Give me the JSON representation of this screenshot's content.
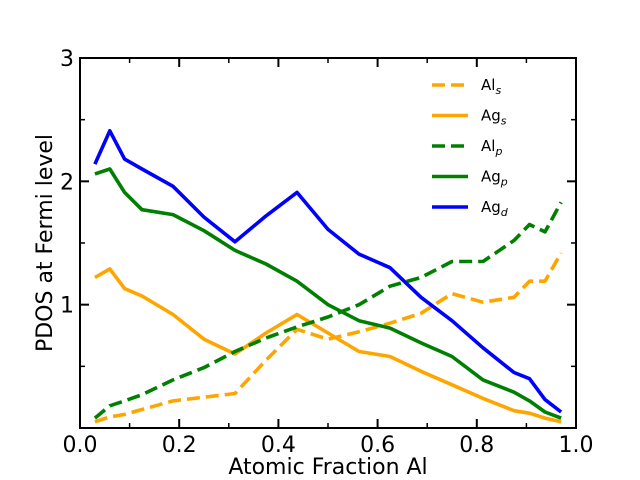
{
  "chart_data": {
    "type": "line",
    "xlabel": "Atomic Fraction Al",
    "ylabel": "PDOS at Fermi level",
    "xlim": [
      0.0,
      1.0
    ],
    "ylim": [
      0.0,
      3.0
    ],
    "x_ticks": [
      0.0,
      0.2,
      0.4,
      0.6,
      0.8,
      1.0
    ],
    "x_tick_labels": [
      "0.0",
      "0.2",
      "0.4",
      "0.6",
      "0.8",
      "1.0"
    ],
    "y_ticks": [
      1,
      2,
      3
    ],
    "y_tick_labels": [
      "1",
      "2",
      "3"
    ],
    "grid": false,
    "legend_position": "top-right",
    "series": [
      {
        "name": "Al",
        "subscript": "s",
        "color": "#FFA500",
        "dash": "dashed",
        "x": [
          0.03,
          0.06,
          0.09,
          0.125,
          0.1875,
          0.25,
          0.3125,
          0.375,
          0.4375,
          0.5,
          0.5625,
          0.625,
          0.6875,
          0.75,
          0.8125,
          0.875,
          0.90625,
          0.9375,
          0.97
        ],
        "y": [
          0.05,
          0.09,
          0.11,
          0.15,
          0.22,
          0.25,
          0.28,
          0.55,
          0.8,
          0.72,
          0.78,
          0.85,
          0.93,
          1.09,
          1.02,
          1.06,
          1.19,
          1.19,
          1.42
        ]
      },
      {
        "name": "Ag",
        "subscript": "s",
        "color": "#FFA500",
        "dash": "solid",
        "x": [
          0.03,
          0.06,
          0.09,
          0.125,
          0.1875,
          0.25,
          0.3125,
          0.375,
          0.4375,
          0.5,
          0.5625,
          0.625,
          0.6875,
          0.75,
          0.8125,
          0.875,
          0.90625,
          0.9375,
          0.97
        ],
        "y": [
          1.22,
          1.29,
          1.13,
          1.07,
          0.92,
          0.72,
          0.6,
          0.77,
          0.92,
          0.77,
          0.62,
          0.58,
          0.46,
          0.35,
          0.24,
          0.14,
          0.12,
          0.08,
          0.05
        ]
      },
      {
        "name": "Al",
        "subscript": "p",
        "color": "#008000",
        "dash": "dashed",
        "x": [
          0.03,
          0.06,
          0.09,
          0.125,
          0.1875,
          0.25,
          0.3125,
          0.375,
          0.4375,
          0.5,
          0.5625,
          0.625,
          0.6875,
          0.75,
          0.8125,
          0.875,
          0.90625,
          0.9375,
          0.97
        ],
        "y": [
          0.08,
          0.18,
          0.22,
          0.27,
          0.39,
          0.49,
          0.62,
          0.73,
          0.82,
          0.9,
          1.0,
          1.15,
          1.22,
          1.35,
          1.35,
          1.52,
          1.65,
          1.59,
          1.83
        ]
      },
      {
        "name": "Ag",
        "subscript": "p",
        "color": "#008000",
        "dash": "solid",
        "x": [
          0.03,
          0.06,
          0.09,
          0.125,
          0.1875,
          0.25,
          0.3125,
          0.375,
          0.4375,
          0.5,
          0.5625,
          0.625,
          0.6875,
          0.75,
          0.8125,
          0.875,
          0.90625,
          0.9375,
          0.97
        ],
        "y": [
          2.06,
          2.1,
          1.91,
          1.77,
          1.73,
          1.6,
          1.44,
          1.33,
          1.19,
          1.0,
          0.87,
          0.81,
          0.69,
          0.58,
          0.39,
          0.29,
          0.22,
          0.13,
          0.08
        ]
      },
      {
        "name": "Ag",
        "subscript": "d",
        "color": "#0000FF",
        "dash": "solid",
        "x": [
          0.03,
          0.06,
          0.09,
          0.125,
          0.1875,
          0.25,
          0.3125,
          0.375,
          0.4375,
          0.5,
          0.5625,
          0.625,
          0.6875,
          0.75,
          0.8125,
          0.875,
          0.90625,
          0.9375,
          0.97
        ],
        "y": [
          2.14,
          2.41,
          2.18,
          2.1,
          1.96,
          1.71,
          1.51,
          1.72,
          1.91,
          1.61,
          1.41,
          1.3,
          1.06,
          0.87,
          0.65,
          0.45,
          0.4,
          0.23,
          0.13
        ]
      }
    ]
  }
}
